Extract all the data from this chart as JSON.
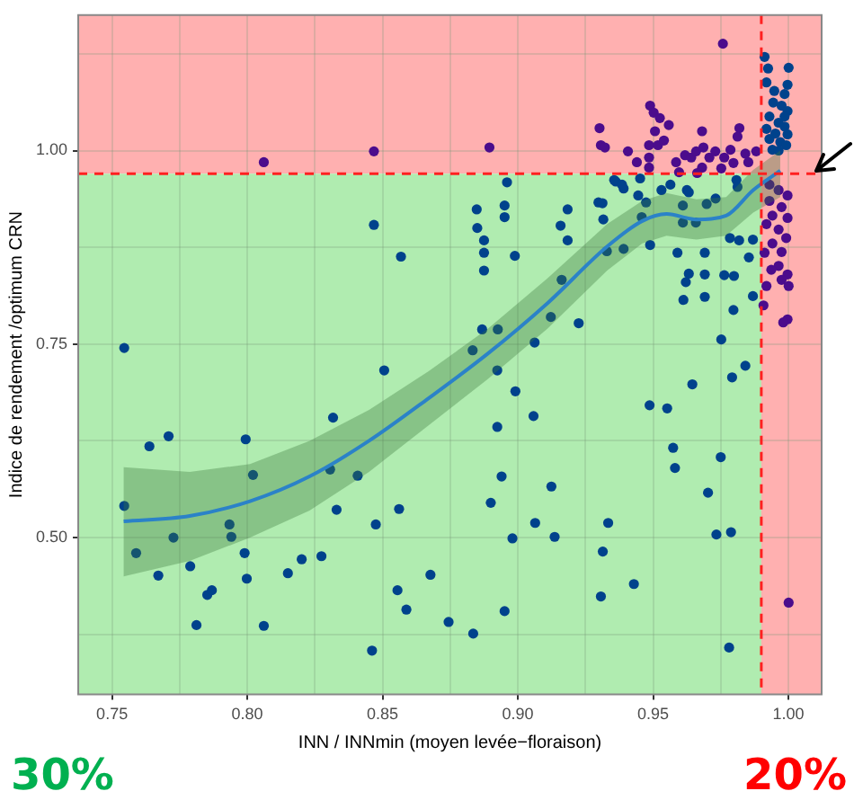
{
  "chart_data": {
    "type": "scatter",
    "xlabel": "INN / INNmin (moyen levée−floraison)",
    "ylabel": "Indice de rendement /optimum CRN",
    "xlim": [
      0.7375,
      1.0123
    ],
    "ylim": [
      0.2976,
      1.175
    ],
    "xticks": [
      {
        "value": 0.75,
        "label": "0.75"
      },
      {
        "value": 0.775,
        "label": null
      },
      {
        "value": 0.8,
        "label": "0.80"
      },
      {
        "value": 0.825,
        "label": null
      },
      {
        "value": 0.85,
        "label": "0.85"
      },
      {
        "value": 0.875,
        "label": null
      },
      {
        "value": 0.9,
        "label": "0.90"
      },
      {
        "value": 0.925,
        "label": null
      },
      {
        "value": 0.95,
        "label": "0.95"
      },
      {
        "value": 0.975,
        "label": null
      },
      {
        "value": 1.0,
        "label": "1.00"
      }
    ],
    "yticks": [
      {
        "value": 0.375,
        "label": null
      },
      {
        "value": 0.5,
        "label": "0.50"
      },
      {
        "value": 0.625,
        "label": null
      },
      {
        "value": 0.75,
        "label": "0.75"
      },
      {
        "value": 0.875,
        "label": null
      },
      {
        "value": 1.0,
        "label": "1.00"
      },
      {
        "value": 1.125,
        "label": null
      }
    ],
    "grid": true,
    "marker": "circle",
    "line_style": "solid",
    "bands": [
      {
        "axis": "y",
        "from": 0.97,
        "to": 1.175,
        "color": "#ffb0b0"
      },
      {
        "axis": "y",
        "from": 0.2976,
        "to": 0.97,
        "color": "#b0ecb0"
      },
      {
        "axis": "x",
        "from": 0.99,
        "to": 1.0123,
        "color": "#ffb0b0"
      }
    ],
    "ref_lines": [
      {
        "axis": "x",
        "value": 0.99,
        "color": "#ff2020",
        "line_style": "dashed"
      },
      {
        "axis": "y",
        "value": 0.97,
        "color": "#ff2020",
        "line_style": "dashed"
      }
    ],
    "annotations": [
      "30%",
      "20%"
    ],
    "series": [
      {
        "type": "scatter",
        "color": "#00428c",
        "x": [
          0.7545,
          0.8506,
          0.7638,
          0.7709,
          0.7994,
          0.8317,
          0.8021,
          0.8306,
          0.8408,
          0.7545,
          0.7589,
          0.7727,
          0.7934,
          0.7941,
          0.7671,
          0.7789,
          0.799,
          0.7998,
          0.7852,
          0.7869,
          0.7812,
          0.8061,
          0.815,
          0.8201,
          0.8274,
          0.833,
          0.8475,
          0.8561,
          0.8555,
          0.8588,
          0.8677,
          0.8744,
          0.8835,
          0.8461,
          0.89,
          0.894,
          0.8924,
          0.8991,
          0.9058,
          0.9124,
          0.9064,
          0.898,
          0.9136,
          0.8951,
          0.9314,
          0.9334,
          0.9307,
          0.9429,
          0.9487,
          0.9552,
          0.9574,
          0.9581,
          0.9645,
          0.9703,
          0.9734,
          0.9788,
          0.975,
          0.9792,
          0.9841,
          0.9781,
          1.0001,
          0.8468,
          0.8568,
          0.8848,
          0.8951,
          0.8951,
          0.885,
          0.8875,
          0.8875,
          0.8875,
          0.8989,
          0.896,
          0.9184,
          0.9158,
          0.9184,
          0.9162,
          0.9225,
          0.9062,
          0.9122,
          0.8868,
          0.8926,
          0.8833,
          0.8924,
          0.9298,
          0.9316,
          0.9313,
          0.9329,
          0.9391,
          0.9489,
          0.9458,
          0.9362,
          0.9391,
          0.9445,
          0.9474,
          0.9531,
          0.9564,
          0.9625,
          0.961,
          0.9632,
          0.9731,
          0.9698,
          0.961,
          0.9658,
          0.959,
          0.9691,
          0.9784,
          0.9818,
          0.9869,
          0.9632,
          0.9691,
          0.9763,
          0.9621,
          0.9612,
          0.9691,
          0.9799,
          0.9854,
          0.9869,
          0.9797,
          0.9808,
          0.9812,
          0.9752,
          0.9356,
          0.9385,
          0.9452,
          0.9912,
          0.9925,
          0.9919,
          0.9948,
          0.9997,
          0.9986,
          0.9944,
          0.9975,
          0.9997,
          0.993,
          0.9964,
          0.9986,
          0.9919,
          0.9952,
          0.9997,
          0.993,
          0.997,
          0.9992,
          0.9941,
          0.9986,
          0.9964
        ],
        "values": [
          0.745,
          0.716,
          0.618,
          0.631,
          0.627,
          0.655,
          0.581,
          0.588,
          0.58,
          0.541,
          0.48,
          0.5,
          0.517,
          0.501,
          0.451,
          0.463,
          0.48,
          0.447,
          0.426,
          0.432,
          0.387,
          0.386,
          0.454,
          0.472,
          0.476,
          0.536,
          0.517,
          0.537,
          0.432,
          0.407,
          0.452,
          0.391,
          0.376,
          0.354,
          0.545,
          0.579,
          0.643,
          0.689,
          0.657,
          0.566,
          0.519,
          0.499,
          0.501,
          0.405,
          0.482,
          0.519,
          0.424,
          0.44,
          0.671,
          0.667,
          0.616,
          0.59,
          0.698,
          0.558,
          0.504,
          0.507,
          0.604,
          0.707,
          0.722,
          0.358,
          1.107,
          0.904,
          0.863,
          0.924,
          0.929,
          0.914,
          0.9,
          0.884,
          0.868,
          0.845,
          0.864,
          0.959,
          0.924,
          0.903,
          0.884,
          0.833,
          0.777,
          0.752,
          0.785,
          0.769,
          0.769,
          0.742,
          0.716,
          0.933,
          0.911,
          0.932,
          0.87,
          0.873,
          0.878,
          0.914,
          0.96,
          0.951,
          0.942,
          0.933,
          0.949,
          0.956,
          0.949,
          0.929,
          0.946,
          0.938,
          0.931,
          0.907,
          0.907,
          0.868,
          0.868,
          0.887,
          0.884,
          0.885,
          0.841,
          0.84,
          0.839,
          0.83,
          0.807,
          0.811,
          0.838,
          0.862,
          0.812,
          0.794,
          0.962,
          0.953,
          0.756,
          0.962,
          0.956,
          0.964,
          1.121,
          1.106,
          1.088,
          1.077,
          1.085,
          1.073,
          1.062,
          1.058,
          1.051,
          1.044,
          1.036,
          1.031,
          1.028,
          1.022,
          1.021,
          1.015,
          1.011,
          1.007,
          1.001,
          1.044,
          1.0
        ]
      },
      {
        "type": "scatter",
        "color": "#4b0c8c",
        "x": [
          1.0001,
          0.9758,
          0.8061,
          0.8468,
          0.8895,
          0.9302,
          0.9307,
          0.9322,
          0.9489,
          0.9502,
          0.9525,
          0.9558,
          0.9507,
          0.9485,
          0.9518,
          0.954,
          0.9485,
          0.9407,
          0.944,
          0.9485,
          0.9585,
          0.9618,
          0.9641,
          0.9681,
          0.9659,
          0.9686,
          0.9708,
          0.9681,
          0.973,
          0.9763,
          0.9786,
          0.9819,
          0.9812,
          0.9841,
          0.9852,
          0.9797,
          0.9881,
          0.9596,
          0.9663,
          0.9752,
          0.993,
          0.9964,
          0.9997,
          0.993,
          0.9975,
          0.9941,
          0.9997,
          0.9919,
          0.9964,
          0.9992,
          0.9941,
          0.9975,
          0.9912,
          0.9964,
          0.9937,
          0.9997,
          0.9975,
          1.0001,
          0.9919,
          0.9997,
          0.9981,
          0.9908
        ],
        "values": [
          0.416,
          1.138,
          0.985,
          0.999,
          1.004,
          1.029,
          1.007,
          1.004,
          1.058,
          1.049,
          1.042,
          1.033,
          1.025,
          1.007,
          1.007,
          1.013,
          0.991,
          0.999,
          0.985,
          0.978,
          0.985,
          0.994,
          0.991,
          1.025,
          0.999,
          1.004,
          0.991,
          0.978,
          0.999,
          0.991,
          1.001,
          1.029,
          1.018,
          0.996,
          0.985,
          0.984,
          0.999,
          0.972,
          0.971,
          0.977,
          0.956,
          0.949,
          0.942,
          0.935,
          0.927,
          0.916,
          0.913,
          0.905,
          0.898,
          0.887,
          0.88,
          0.869,
          0.868,
          0.851,
          0.846,
          0.84,
          0.833,
          0.825,
          0.825,
          0.782,
          0.778,
          0.8
        ]
      },
      {
        "type": "line",
        "color": "#2b82c8",
        "marker": "none",
        "x": [
          0.7543,
          0.7787,
          0.801,
          0.823,
          0.845,
          0.867,
          0.889,
          0.911,
          0.933,
          0.946,
          0.955,
          0.966,
          0.977,
          0.987,
          0.997
        ],
        "values": [
          0.521,
          0.528,
          0.547,
          0.579,
          0.625,
          0.68,
          0.738,
          0.803,
          0.876,
          0.909,
          0.918,
          0.911,
          0.916,
          0.949,
          0.974
        ],
        "lower": [
          0.45,
          0.47,
          0.5,
          0.535,
          0.585,
          0.645,
          0.705,
          0.77,
          0.845,
          0.88,
          0.89,
          0.885,
          0.89,
          0.92,
          0.94
        ],
        "upper": [
          0.591,
          0.585,
          0.595,
          0.625,
          0.665,
          0.715,
          0.77,
          0.835,
          0.905,
          0.935,
          0.945,
          0.937,
          0.94,
          0.975,
          1.0
        ]
      }
    ]
  }
}
